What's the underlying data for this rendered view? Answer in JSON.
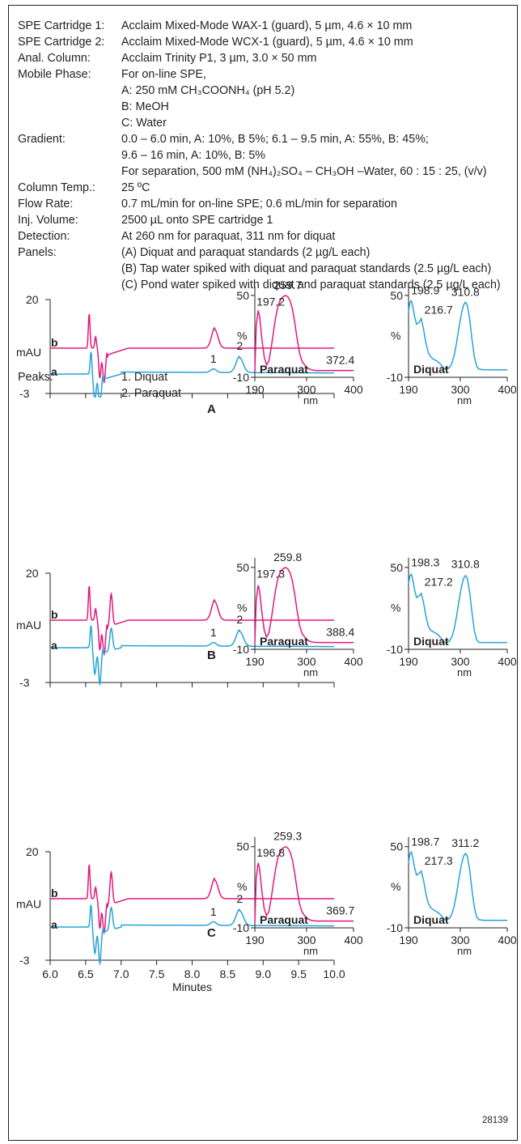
{
  "conditions": [
    {
      "label": "SPE Cartridge 1:",
      "lines": [
        "Acclaim Mixed-Mode WAX-1 (guard), 5 µm, 4.6 × 10 mm"
      ]
    },
    {
      "label": "SPE Cartridge 2:",
      "lines": [
        "Acclaim Mixed-Mode WCX-1 (guard), 5 µm, 4.6 × 10 mm"
      ]
    },
    {
      "label": "Anal. Column:",
      "lines": [
        "Acclaim Trinity P1, 3 µm, 3.0 × 50 mm"
      ]
    },
    {
      "label": "Mobile Phase:",
      "lines": [
        "For on-line SPE,",
        "A: 250 mM CH₃COONH₄ (pH 5.2)",
        "B: MeOH",
        "C: Water"
      ]
    },
    {
      "label": "Gradient:",
      "lines": [
        "0.0 – 6.0 min, A: 10%, B  5%; 6.1 – 9.5 min, A: 55%, B: 45%;",
        "9.6 – 16 min, A: 10%, B: 5%",
        "For separation, 500 mM (NH₄)₂SO₄ – CH₃OH –Water, 60 : 15 : 25, (v/v)"
      ]
    },
    {
      "label": "Column Temp.:",
      "lines": [
        "25 ºC"
      ]
    },
    {
      "label": "Flow Rate:",
      "lines": [
        "0.7 mL/min for on-line SPE; 0.6 mL/min for separation"
      ]
    },
    {
      "label": "Inj. Volume:",
      "lines": [
        "2500 µL onto SPE cartridge 1"
      ]
    },
    {
      "label": "Detection:",
      "lines": [
        "At 260 nm for paraquat, 311 nm for diquat"
      ]
    },
    {
      "label": "Panels:",
      "lines": [
        "(A) Diquat and paraquat standards (2 µg/L each)",
        "(B) Tap water spiked with diquat and paraquat standards (2.5 µg/L each)",
        "(C) Pond water spiked with diquat and paraquat standards (2.5 µg/L each)"
      ]
    }
  ],
  "peaks": {
    "label": "Peaks:",
    "items": [
      "1. Diquat",
      "2. Paraquat"
    ]
  },
  "figure_id": "28139",
  "colors": {
    "trace_a": "#27a3d8",
    "trace_b": "#e0197d",
    "text": "#231f20"
  },
  "chart_data": [
    {
      "type": "line",
      "panel": "A",
      "ylabel": "mAU",
      "ylim": [
        -3,
        20
      ],
      "y_ticks": [
        "20",
        "-3"
      ],
      "xlim": [
        6.0,
        10.0
      ],
      "series": [
        {
          "name": "b"
        },
        {
          "name": "a"
        }
      ],
      "peak_labels": [
        "1",
        "2"
      ],
      "spectra": [
        {
          "name": "Paraquat",
          "xlabel": "nm",
          "ylabel": "%",
          "xlim": [
            190,
            400
          ],
          "ylim": [
            -10,
            60
          ],
          "x_ticks": [
            "190",
            "300",
            "400"
          ],
          "y_ticks": [
            "50",
            "-10"
          ],
          "annotations": [
            "197.2",
            "259.7",
            "372.4"
          ],
          "x": [
            190,
            193,
            197,
            200,
            205,
            210,
            215,
            220,
            225,
            230,
            235,
            240,
            245,
            250,
            255,
            260,
            265,
            270,
            275,
            280,
            285,
            290,
            300,
            310,
            320,
            330,
            340,
            350,
            360,
            372,
            380,
            390,
            400
          ],
          "y": [
            -6,
            28,
            39,
            35,
            18,
            5,
            -1,
            2,
            12,
            24,
            35,
            43,
            47,
            49,
            50,
            49,
            46,
            40,
            30,
            18,
            8,
            2,
            -3,
            -4.5,
            -5,
            -5,
            -5,
            -5,
            -5,
            -5,
            -5,
            -5,
            -5
          ]
        },
        {
          "name": "Diquat",
          "xlabel": "nm",
          "ylabel": "%",
          "xlim": [
            190,
            400
          ],
          "ylim": [
            -10,
            60
          ],
          "x_ticks": [
            "190",
            "300",
            "400"
          ],
          "y_ticks": [
            "50",
            "-10"
          ],
          "annotations": [
            "198.9",
            "216.7",
            "310.8"
          ],
          "x": [
            190,
            193,
            196,
            199,
            203,
            207,
            212,
            217,
            222,
            227,
            232,
            237,
            242,
            247,
            252,
            257,
            262,
            267,
            272,
            277,
            282,
            287,
            292,
            297,
            302,
            307,
            311,
            315,
            320,
            325,
            330,
            335,
            340,
            350,
            360,
            370,
            380,
            390,
            400
          ],
          "y": [
            38,
            45,
            46,
            42,
            34,
            29,
            30,
            33,
            25,
            15,
            8,
            5,
            3.5,
            2.5,
            1.5,
            0,
            -2,
            -4,
            -4,
            -3,
            0,
            6,
            15,
            26,
            36,
            43,
            45,
            43,
            33,
            18,
            5,
            -2,
            -4,
            -4.5,
            -4.5,
            -4.5,
            -4.5,
            -4.5,
            -4.5
          ]
        }
      ]
    },
    {
      "type": "line",
      "panel": "B",
      "ylabel": "mAU",
      "ylim": [
        -3,
        20
      ],
      "y_ticks": [
        "20",
        "-3"
      ],
      "xlim": [
        6.0,
        10.0
      ],
      "series": [
        {
          "name": "b"
        },
        {
          "name": "a"
        }
      ],
      "peak_labels": [
        "1",
        "2"
      ],
      "spectra": [
        {
          "name": "Paraquat",
          "xlabel": "nm",
          "ylabel": "%",
          "xlim": [
            190,
            400
          ],
          "ylim": [
            -10,
            60
          ],
          "x_ticks": [
            "190",
            "300",
            "400"
          ],
          "y_ticks": [
            "50",
            "-10"
          ],
          "annotations": [
            "197.3",
            "259.8",
            "388.4"
          ],
          "x": [
            190,
            193,
            197,
            200,
            205,
            210,
            215,
            220,
            225,
            230,
            235,
            240,
            245,
            250,
            255,
            260,
            265,
            270,
            275,
            280,
            285,
            290,
            300,
            310,
            320,
            330,
            340,
            350,
            360,
            370,
            388,
            400
          ],
          "y": [
            -6,
            26,
            37,
            33,
            17,
            4,
            -1,
            2,
            12,
            24,
            35,
            43,
            47,
            49,
            50,
            49,
            46,
            40,
            30,
            18,
            8,
            2,
            -3,
            -4.5,
            -5,
            -5,
            -5,
            -5,
            -5,
            -5,
            -5,
            -5
          ]
        },
        {
          "name": "Diquat",
          "xlabel": "nm",
          "ylabel": "%",
          "xlim": [
            190,
            400
          ],
          "ylim": [
            -10,
            60
          ],
          "x_ticks": [
            "190",
            "300",
            "400"
          ],
          "y_ticks": [
            "50",
            "-10"
          ],
          "annotations": [
            "198.3",
            "217.2",
            "310.8"
          ],
          "x": [
            190,
            193,
            196,
            199,
            203,
            207,
            212,
            217,
            222,
            227,
            232,
            237,
            242,
            247,
            252,
            257,
            262,
            267,
            272,
            277,
            282,
            287,
            292,
            297,
            302,
            307,
            311,
            315,
            320,
            325,
            330,
            335,
            340,
            350,
            360,
            370,
            380,
            390,
            400
          ],
          "y": [
            38,
            44,
            45,
            41,
            33,
            28,
            29,
            31,
            24,
            14,
            7,
            4,
            3,
            2,
            1,
            -1,
            -3,
            -5,
            -5,
            -4,
            -1,
            5,
            14,
            25,
            35,
            42,
            44,
            42,
            32,
            17,
            4,
            -3,
            -5,
            -5,
            -5,
            -5,
            -5,
            -5,
            -5
          ]
        }
      ]
    },
    {
      "type": "line",
      "panel": "C",
      "ylabel": "mAU",
      "ylim": [
        -3,
        20
      ],
      "y_ticks": [
        "20",
        "-3"
      ],
      "xlabel": "Minutes",
      "xlim": [
        6.0,
        10.0
      ],
      "x_ticks": [
        "6.0",
        "6.5",
        "7.0",
        "7.5",
        "8.0",
        "8.5",
        "9.0",
        "9.5",
        "10.0"
      ],
      "series": [
        {
          "name": "b"
        },
        {
          "name": "a"
        }
      ],
      "peak_labels": [
        "1",
        "2"
      ],
      "spectra": [
        {
          "name": "Paraquat",
          "xlabel": "nm",
          "ylabel": "%",
          "xlim": [
            190,
            400
          ],
          "ylim": [
            -10,
            60
          ],
          "x_ticks": [
            "190",
            "300",
            "400"
          ],
          "y_ticks": [
            "50",
            "-10"
          ],
          "annotations": [
            "196.8",
            "259.3",
            "369.7"
          ],
          "x": [
            190,
            193,
            197,
            200,
            205,
            210,
            215,
            220,
            225,
            230,
            235,
            240,
            245,
            250,
            255,
            260,
            265,
            270,
            275,
            280,
            285,
            290,
            300,
            310,
            320,
            330,
            340,
            350,
            360,
            370,
            380,
            390,
            400
          ],
          "y": [
            -6,
            27,
            38,
            34,
            17,
            4,
            -1,
            2,
            12,
            24,
            35,
            43,
            47,
            49,
            50,
            49,
            46,
            40,
            30,
            18,
            8,
            2,
            -3,
            -4.5,
            -5,
            -5,
            -5,
            -5,
            -5,
            -5,
            -5,
            -5,
            -5
          ]
        },
        {
          "name": "Diquat",
          "xlabel": "nm",
          "ylabel": "%",
          "xlim": [
            190,
            400
          ],
          "ylim": [
            -10,
            60
          ],
          "x_ticks": [
            "190",
            "300",
            "400"
          ],
          "y_ticks": [
            "50",
            "-10"
          ],
          "annotations": [
            "198.7",
            "217.3",
            "311.2"
          ],
          "x": [
            190,
            193,
            196,
            199,
            203,
            207,
            212,
            217,
            222,
            227,
            232,
            237,
            242,
            247,
            252,
            257,
            262,
            267,
            272,
            277,
            282,
            287,
            292,
            297,
            302,
            307,
            311,
            315,
            320,
            325,
            330,
            335,
            340,
            350,
            360,
            370,
            380,
            390,
            400
          ],
          "y": [
            38,
            45,
            46,
            42,
            34,
            29,
            30,
            32,
            25,
            15,
            8,
            5,
            3.5,
            2.5,
            1.5,
            0,
            -2,
            -4,
            -4,
            -3,
            0,
            6,
            15,
            26,
            36,
            43,
            45,
            43,
            33,
            18,
            5,
            -2,
            -4,
            -4.5,
            -4.5,
            -4.5,
            -4.5,
            -4.5,
            -4.5
          ]
        }
      ]
    }
  ]
}
